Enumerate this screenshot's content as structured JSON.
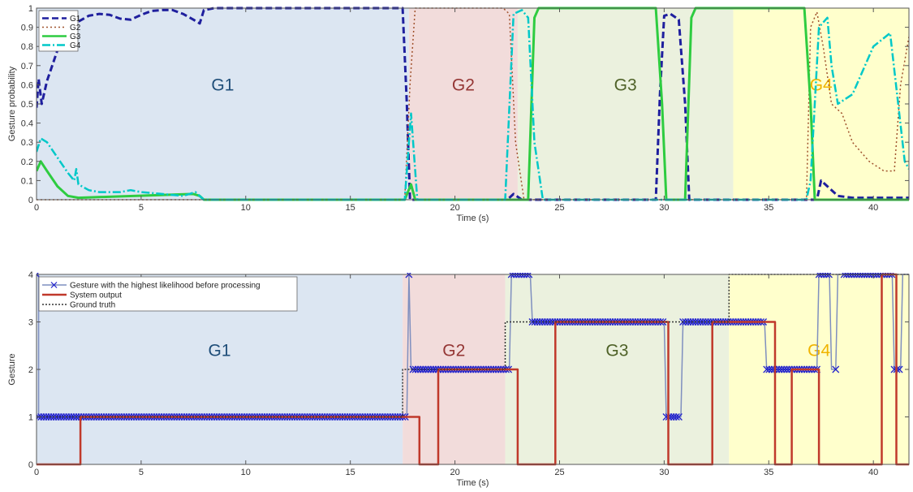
{
  "chart_data": [
    {
      "type": "line",
      "xlabel": "Time (s)",
      "ylabel": "Gesture probability",
      "xlim": [
        0,
        41.7
      ],
      "ylim": [
        0,
        1
      ],
      "xticks": [
        0,
        5,
        10,
        15,
        20,
        25,
        30,
        35,
        40
      ],
      "yticks": [
        0,
        0.1,
        0.2,
        0.3,
        0.4,
        0.5,
        0.6,
        0.7,
        0.8,
        0.9,
        1
      ],
      "ytick_labels": [
        "0",
        "0.1",
        "0.2",
        "0.3",
        "0.4",
        "0.5",
        "0.6",
        "0.7",
        "0.8",
        "0.9",
        "1"
      ],
      "grid": false,
      "legend_position": "top-left",
      "regions": [
        {
          "label": "G1",
          "start": 0,
          "end": 17.8,
          "fill": "#dce6f2",
          "text_color": "#1f4e79"
        },
        {
          "label": "G2",
          "start": 17.8,
          "end": 23.0,
          "fill": "#f2dcdb",
          "text_color": "#953735"
        },
        {
          "label": "G3",
          "start": 23.0,
          "end": 33.3,
          "fill": "#ebf1de",
          "text_color": "#4f6228"
        },
        {
          "label": "G4",
          "start": 33.3,
          "end": 41.7,
          "fill": "#ffffcc",
          "text_color": "#f0b400"
        }
      ],
      "series": [
        {
          "name": "G1",
          "color": "#1f1f9e",
          "dash": "8,4",
          "width": 3,
          "x": [
            0,
            0.1,
            0.25,
            0.5,
            1.0,
            1.5,
            2.0,
            2.5,
            3.0,
            3.5,
            4.0,
            4.5,
            5.0,
            5.5,
            6.0,
            6.5,
            7.0,
            7.5,
            7.8,
            8.0,
            8.5,
            17.5,
            17.7,
            17.85,
            18.1,
            22.5,
            22.8,
            23.2,
            29.6,
            29.8,
            30.0,
            30.3,
            30.7,
            31.0,
            31.2,
            37.3,
            37.5,
            37.8,
            38.3,
            39.0,
            41.7
          ],
          "y": [
            0.48,
            0.63,
            0.5,
            0.62,
            0.78,
            0.88,
            0.93,
            0.96,
            0.97,
            0.965,
            0.945,
            0.94,
            0.965,
            0.985,
            0.99,
            0.99,
            0.97,
            0.94,
            0.92,
            0.99,
            1.0,
            1.0,
            0.5,
            0.0,
            0.0,
            0.0,
            0.03,
            0.0,
            0.0,
            0.55,
            0.96,
            0.97,
            0.94,
            0.5,
            0.0,
            0.0,
            0.1,
            0.07,
            0.02,
            0.01,
            0.01
          ]
        },
        {
          "name": "G2",
          "color": "#a0522d",
          "dash": "2,3",
          "width": 1.5,
          "x": [
            0,
            17.6,
            17.85,
            18.1,
            22.3,
            22.6,
            22.9,
            23.3,
            36.8,
            37.0,
            37.3,
            37.6,
            38.0,
            38.5,
            39.0,
            39.8,
            40.5,
            41.0,
            41.3,
            41.7
          ],
          "y": [
            0.0,
            0.0,
            0.6,
            1.0,
            1.0,
            0.97,
            0.3,
            0.0,
            0.0,
            0.9,
            0.98,
            0.8,
            0.5,
            0.45,
            0.3,
            0.2,
            0.15,
            0.15,
            0.6,
            0.85
          ]
        },
        {
          "name": "G3",
          "color": "#2ecc40",
          "dash": "",
          "width": 3,
          "x": [
            0,
            0.2,
            0.5,
            1.0,
            1.5,
            2.0,
            7.5,
            7.8,
            8.0,
            17.6,
            17.9,
            18.1,
            23.5,
            23.8,
            24.0,
            29.6,
            29.9,
            30.1,
            31.0,
            31.3,
            31.5,
            36.7,
            37.0,
            37.2,
            41.7
          ],
          "y": [
            0.15,
            0.2,
            0.15,
            0.07,
            0.02,
            0.01,
            0.03,
            0.02,
            0.0,
            0.0,
            0.08,
            0.0,
            0.0,
            0.95,
            1.0,
            1.0,
            0.5,
            0.0,
            0.0,
            0.95,
            1.0,
            1.0,
            0.5,
            0.0,
            0.0
          ]
        },
        {
          "name": "G4",
          "color": "#00c8c8",
          "dash": "10,3,2,3",
          "width": 2.5,
          "x": [
            0,
            0.2,
            0.5,
            1.0,
            1.5,
            1.8,
            1.9,
            2.0,
            2.5,
            3.0,
            4.0,
            4.5,
            5.0,
            6.0,
            7.0,
            7.6,
            8.0,
            17.6,
            17.9,
            18.2,
            22.4,
            22.8,
            23.2,
            23.5,
            23.8,
            24.2,
            36.8,
            37.0,
            37.4,
            37.8,
            38.0,
            38.3,
            39.0,
            40.0,
            40.8,
            41.5,
            41.7
          ],
          "y": [
            0.25,
            0.32,
            0.3,
            0.22,
            0.14,
            0.1,
            0.16,
            0.08,
            0.05,
            0.04,
            0.04,
            0.05,
            0.04,
            0.03,
            0.02,
            0.04,
            0.0,
            0.0,
            0.45,
            0.0,
            0.0,
            0.97,
            0.99,
            0.95,
            0.3,
            0.0,
            0.0,
            0.1,
            0.9,
            0.95,
            0.7,
            0.5,
            0.55,
            0.8,
            0.87,
            0.2,
            0.16
          ]
        }
      ]
    },
    {
      "type": "line",
      "xlabel": "Time (s)",
      "ylabel": "Gesture",
      "xlim": [
        0,
        41.7
      ],
      "ylim": [
        0,
        4
      ],
      "xticks": [
        0,
        5,
        10,
        15,
        20,
        25,
        30,
        35,
        40
      ],
      "yticks": [
        0,
        1,
        2,
        3,
        4
      ],
      "ytick_labels": [
        "0",
        "1",
        "2",
        "3",
        "4"
      ],
      "grid": false,
      "legend_position": "top-left",
      "regions": [
        {
          "label": "G1",
          "start": 0,
          "end": 17.5,
          "fill": "#dce6f2",
          "text_color": "#1f4e79"
        },
        {
          "label": "G2",
          "start": 17.5,
          "end": 22.4,
          "fill": "#f2dcdb",
          "text_color": "#953735"
        },
        {
          "label": "G3",
          "start": 22.4,
          "end": 33.1,
          "fill": "#ebf1de",
          "text_color": "#4f6228"
        },
        {
          "label": "G4",
          "start": 33.1,
          "end": 41.7,
          "fill": "#ffffcc",
          "text_color": "#f0b400"
        }
      ],
      "series": [
        {
          "name": "Gesture with the highest likelihood before processing",
          "color": "#7f8fbf",
          "marker_color": "#2222cc",
          "marker": "x",
          "width": 1.5,
          "x": [
            0,
            0.1,
            0.1,
            17.7,
            17.8,
            17.9,
            18.0,
            22.6,
            22.7,
            23.6,
            23.7,
            30.0,
            30.1,
            30.8,
            30.9,
            34.8,
            34.9,
            37.3,
            37.4,
            37.9,
            38.0,
            38.2,
            38.3,
            38.5,
            38.6,
            40.9,
            41.0,
            41.3,
            41.4,
            41.7
          ],
          "y": [
            4,
            4,
            1,
            1,
            4,
            2,
            2,
            2,
            4,
            4,
            3,
            3,
            1,
            1,
            3,
            3,
            2,
            2,
            4,
            4,
            2,
            2,
            4,
            4,
            4,
            4,
            2,
            2,
            4,
            4
          ],
          "marker_segments": [
            [
              0.1,
              17.7,
              1
            ],
            [
              18.0,
              22.6,
              2
            ],
            [
              22.7,
              23.6,
              4
            ],
            [
              23.7,
              30.0,
              3
            ],
            [
              30.1,
              30.8,
              1
            ],
            [
              30.9,
              34.8,
              3
            ],
            [
              34.9,
              37.3,
              2
            ],
            [
              37.4,
              37.9,
              4
            ],
            [
              38.6,
              40.9,
              4
            ],
            [
              41.0,
              41.3,
              2
            ]
          ],
          "marker_points": [
            [
              0,
              4
            ],
            [
              17.8,
              4
            ],
            [
              38.2,
              2
            ]
          ]
        },
        {
          "name": "System output",
          "color": "#c0392b",
          "width": 2.5,
          "x": [
            0,
            2.1,
            2.1,
            18.3,
            18.3,
            19.2,
            19.2,
            23.0,
            23.0,
            24.8,
            24.8,
            30.2,
            30.2,
            32.3,
            32.3,
            35.3,
            35.3,
            36.1,
            36.1,
            37.4,
            37.4,
            40.4,
            40.4,
            41.1,
            41.1,
            41.7
          ],
          "y": [
            0,
            0,
            1,
            1,
            0,
            0,
            2,
            2,
            0,
            0,
            3,
            3,
            0,
            0,
            3,
            3,
            0,
            0,
            2,
            2,
            0,
            0,
            4,
            4,
            0,
            0
          ]
        },
        {
          "name": "Ground truth",
          "color": "#333333",
          "dash": "2,2",
          "width": 1.5,
          "x": [
            0,
            17.5,
            17.5,
            22.4,
            22.4,
            33.1,
            33.1,
            41.7
          ],
          "y": [
            1,
            1,
            2,
            2,
            3,
            3,
            4,
            4
          ]
        }
      ]
    }
  ]
}
